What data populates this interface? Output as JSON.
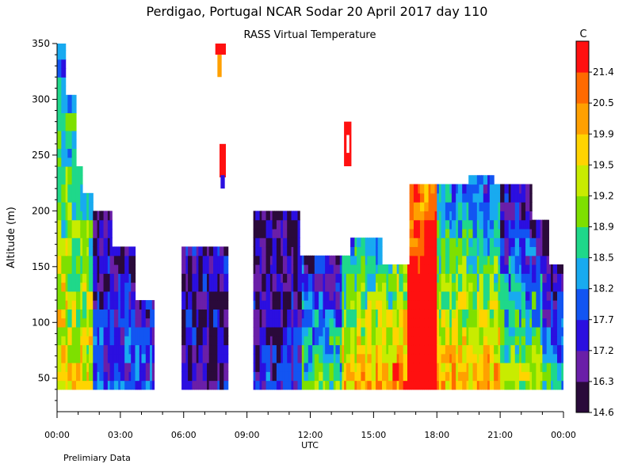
{
  "header": {
    "title": "Perdigao, Portugal   NCAR Sodar   20 April 2017   day 110",
    "subtitle": "RASS Virtual Temperature",
    "footnote": "Prelimiary Data"
  },
  "chart_data": {
    "type": "heatmap",
    "title": "Perdigao, Portugal   NCAR Sodar   20 April 2017   day 110",
    "subtitle": "RASS Virtual Temperature",
    "xlabel": "UTC",
    "ylabel": "Altitude (m)",
    "x_range_hours": [
      0,
      24
    ],
    "ylim": [
      20,
      350
    ],
    "x_ticks": [
      "00:00",
      "03:00",
      "06:00",
      "09:00",
      "12:00",
      "15:00",
      "18:00",
      "21:00",
      "00:00"
    ],
    "y_ticks": [
      50,
      100,
      150,
      200,
      250,
      300,
      350
    ],
    "colorbar": {
      "unit": "C",
      "labels": [
        "14.6",
        "16.3",
        "17.2",
        "17.7",
        "18.2",
        "18.5",
        "18.9",
        "19.2",
        "19.5",
        "19.9",
        "20.5",
        "21.4"
      ],
      "colors": [
        "#2a0a3a",
        "#6a1fa8",
        "#2b0fe0",
        "#1255f2",
        "#18aaf0",
        "#1fd88a",
        "#7ee000",
        "#c8ec00",
        "#ffd400",
        "#ffa000",
        "#ff6a00",
        "#ff1010"
      ]
    },
    "data_floor_m": 40,
    "grid": false,
    "legend": "colorbar-right"
  }
}
